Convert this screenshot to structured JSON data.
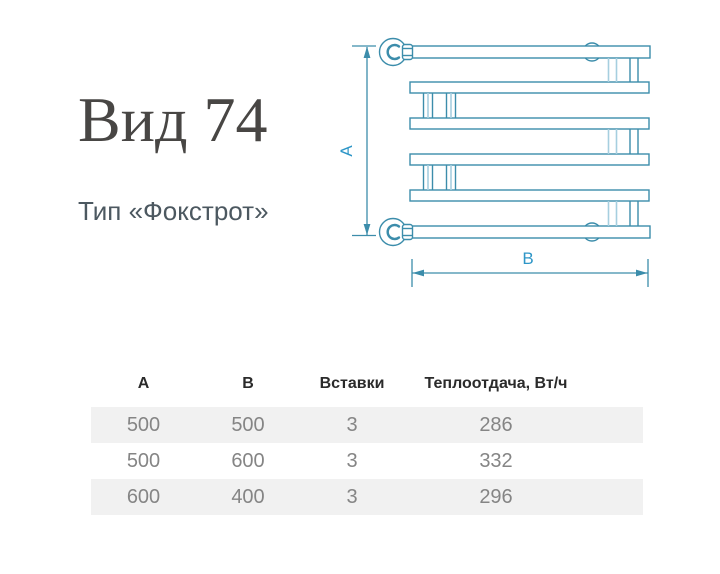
{
  "product": {
    "title": "Вид 74",
    "subtitle": "Тип «Фокстрот»"
  },
  "diagram": {
    "dim_a_label": "А",
    "dim_b_label": "В",
    "line_color": "#3c8dab",
    "light_line_color": "#a6cfdf",
    "label_color": "#2e96c7"
  },
  "table": {
    "headers": [
      "А",
      "В",
      "Вставки",
      "Теплоотдача, Вт/ч"
    ],
    "rows": [
      [
        "500",
        "500",
        "3",
        "286"
      ],
      [
        "500",
        "600",
        "3",
        "332"
      ],
      [
        "600",
        "400",
        "3",
        "296"
      ]
    ],
    "stripe_color": "#f1f1f1",
    "header_text_color": "#2b2b2b",
    "cell_text_color": "#858585"
  }
}
